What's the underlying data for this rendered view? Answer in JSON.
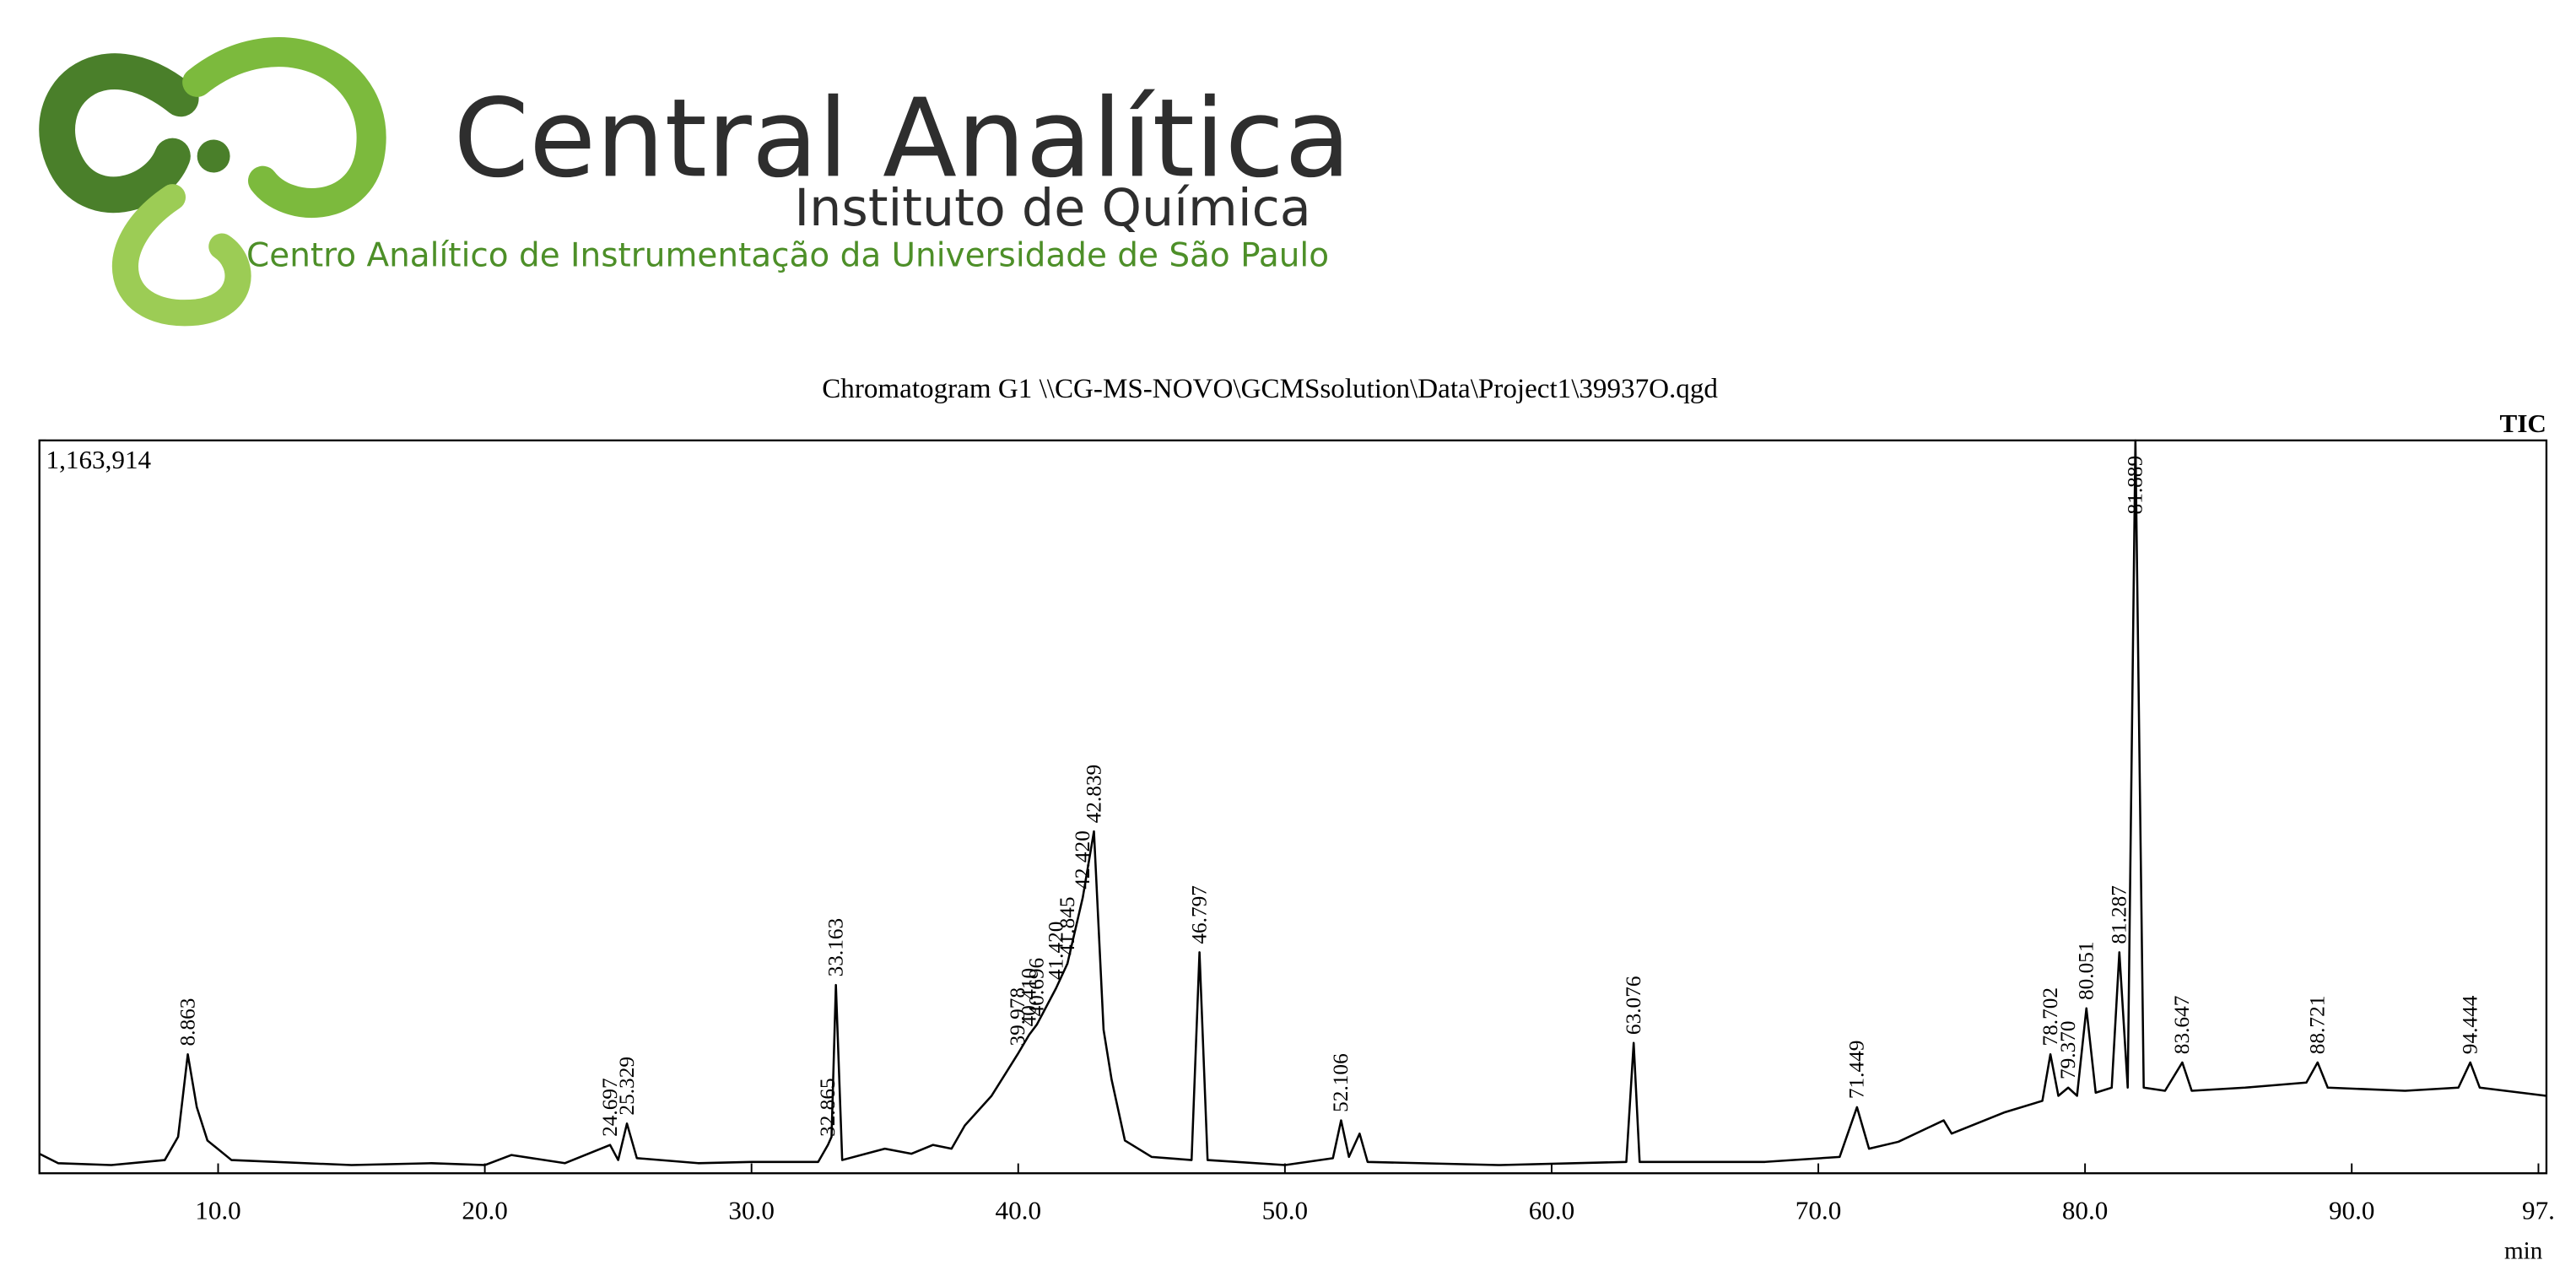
{
  "header": {
    "title": "Central Analítica",
    "subtitle": "Instituto de Química",
    "caption": "Centro Analítico de Instrumentação da Universidade de São Paulo"
  },
  "chart_data": {
    "type": "line",
    "title": "Chromatogram G1 \\\\CG-MS-NOVO\\GCMSsolution\\Data\\Project1\\39937O.qgd",
    "series_label": "TIC",
    "x_label": "min",
    "color": "#000000",
    "xlim": [
      3.3,
      97.3
    ],
    "ylim": [
      0,
      1163914
    ],
    "xticks": [
      {
        "value": 10,
        "label": "10.0"
      },
      {
        "value": 20,
        "label": "20.0"
      },
      {
        "value": 30,
        "label": "30.0"
      },
      {
        "value": 40,
        "label": "40.0"
      },
      {
        "value": 50,
        "label": "50.0"
      },
      {
        "value": 60,
        "label": "60.0"
      },
      {
        "value": 70,
        "label": "70.0"
      },
      {
        "value": 80,
        "label": "80.0"
      },
      {
        "value": 90,
        "label": "90.0"
      },
      {
        "value": 97,
        "label": "97."
      }
    ],
    "yticks": [
      {
        "value": 1163914,
        "label": "1,163,914"
      }
    ],
    "x": [
      3.3,
      4.0,
      6.0,
      8.0,
      8.5,
      8.863,
      9.2,
      9.6,
      10.5,
      15.0,
      18.0,
      20.0,
      21.0,
      23.0,
      24.697,
      25.0,
      25.329,
      25.7,
      28.0,
      30.0,
      32.5,
      32.865,
      33.0,
      33.163,
      33.4,
      35.0,
      36.0,
      36.8,
      37.5,
      38.0,
      39.0,
      39.978,
      40.41,
      40.696,
      41.42,
      41.845,
      42.42,
      42.839,
      43.2,
      43.5,
      44.0,
      45.0,
      46.5,
      46.797,
      47.1,
      50.0,
      51.8,
      52.106,
      52.4,
      52.8,
      53.1,
      58.0,
      62.8,
      63.076,
      63.3,
      68.0,
      70.8,
      71.449,
      71.9,
      73.0,
      74.7,
      75.0,
      77.0,
      78.4,
      78.702,
      79.0,
      79.37,
      79.7,
      80.051,
      80.4,
      81.0,
      81.287,
      81.6,
      81.889,
      82.2,
      83.0,
      83.647,
      84.0,
      86.0,
      88.3,
      88.721,
      89.1,
      92.0,
      94.0,
      94.444,
      94.8,
      97.3
    ],
    "values": [
      31000,
      16000,
      13000,
      21000,
      58000,
      189000,
      105000,
      52000,
      21000,
      13000,
      16000,
      13000,
      29000,
      16000,
      45000,
      21000,
      79000,
      24000,
      16000,
      18000,
      18000,
      45000,
      58000,
      299000,
      21000,
      39000,
      31000,
      45000,
      39000,
      76000,
      123000,
      189000,
      220000,
      236000,
      294000,
      333000,
      438000,
      543000,
      228000,
      149000,
      52000,
      26000,
      21000,
      351000,
      21000,
      13000,
      24000,
      84000,
      26000,
      63000,
      18000,
      13000,
      18000,
      207000,
      18000,
      18000,
      26000,
      105000,
      39000,
      50000,
      84000,
      63000,
      97000,
      115000,
      189000,
      123000,
      136000,
      123000,
      262000,
      128000,
      136000,
      351000,
      136000,
      1163914,
      136000,
      131000,
      176000,
      131000,
      136000,
      144000,
      176000,
      136000,
      131000,
      136000,
      176000,
      136000,
      123000
    ],
    "peaks": [
      {
        "time": 8.863,
        "label": "8.863"
      },
      {
        "time": 24.697,
        "label": "24.697"
      },
      {
        "time": 25.329,
        "label": "25.329"
      },
      {
        "time": 32.865,
        "label": "32.865"
      },
      {
        "time": 33.163,
        "label": "33.163"
      },
      {
        "time": 39.978,
        "label": "39.978"
      },
      {
        "time": 40.41,
        "label": "40.410"
      },
      {
        "time": 40.696,
        "label": "40.696"
      },
      {
        "time": 41.42,
        "label": "41.420"
      },
      {
        "time": 41.845,
        "label": "41.845"
      },
      {
        "time": 42.42,
        "label": "42.420"
      },
      {
        "time": 42.839,
        "label": "42.839"
      },
      {
        "time": 46.797,
        "label": "46.797"
      },
      {
        "time": 52.106,
        "label": "52.106"
      },
      {
        "time": 63.076,
        "label": "63.076"
      },
      {
        "time": 71.449,
        "label": "71.449"
      },
      {
        "time": 78.702,
        "label": "78.702"
      },
      {
        "time": 79.37,
        "label": "79.370"
      },
      {
        "time": 80.051,
        "label": "80.051"
      },
      {
        "time": 81.287,
        "label": "81.287"
      },
      {
        "time": 81.889,
        "label": "81.889"
      },
      {
        "time": 83.647,
        "label": "83.647"
      },
      {
        "time": 88.721,
        "label": "88.721"
      },
      {
        "time": 94.444,
        "label": "94.444"
      }
    ]
  }
}
